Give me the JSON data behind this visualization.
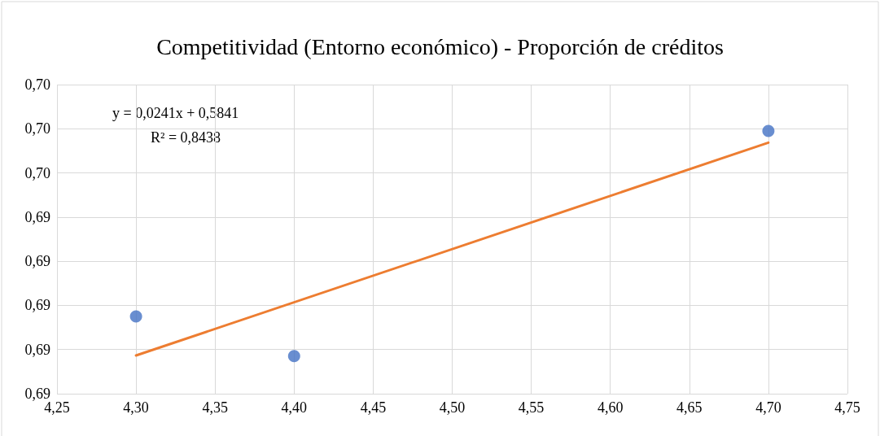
{
  "chart_data": {
    "type": "scatter",
    "title": "Competitividad (Entorno económico) - Proporción de créditos",
    "series": [
      {
        "color": "#4472c4",
        "marker": "circle",
        "x": [
          4.3,
          4.4,
          4.7
        ],
        "values": [
          0.6895,
          0.6877,
          0.6979
        ]
      },
      {
        "type": "line",
        "color": "#ed7d31",
        "marker": "none",
        "line_style": "solid",
        "x": [
          4.3,
          4.7
        ],
        "values": [
          0.68773,
          0.69737
        ]
      }
    ],
    "xlim": [
      4.25,
      4.75
    ],
    "xticks": [
      {
        "value": 4.25,
        "label": "4,25"
      },
      {
        "value": 4.3,
        "label": "4,30"
      },
      {
        "value": 4.35,
        "label": "4,35"
      },
      {
        "value": 4.4,
        "label": "4,40"
      },
      {
        "value": 4.45,
        "label": "4,45"
      },
      {
        "value": 4.5,
        "label": "4,50"
      },
      {
        "value": 4.55,
        "label": "4,55"
      },
      {
        "value": 4.6,
        "label": "4,60"
      },
      {
        "value": 4.65,
        "label": "4,65"
      },
      {
        "value": 4.7,
        "label": "4,70"
      },
      {
        "value": 4.75,
        "label": "4,75"
      }
    ],
    "ylim": [
      0.686,
      0.7
    ],
    "yticks": [
      {
        "value": 0.686,
        "label": "0,69"
      },
      {
        "value": 0.688,
        "label": "0,69"
      },
      {
        "value": 0.69,
        "label": "0,69"
      },
      {
        "value": 0.692,
        "label": "0,69"
      },
      {
        "value": 0.694,
        "label": "0,69"
      },
      {
        "value": 0.696,
        "label": "0,70"
      },
      {
        "value": 0.698,
        "label": "0,70"
      },
      {
        "value": 0.7,
        "label": "0,70"
      }
    ],
    "grid": true,
    "annotations": [
      "y = 0,0241x + 0,5841",
      "R² = 0,8438"
    ]
  }
}
